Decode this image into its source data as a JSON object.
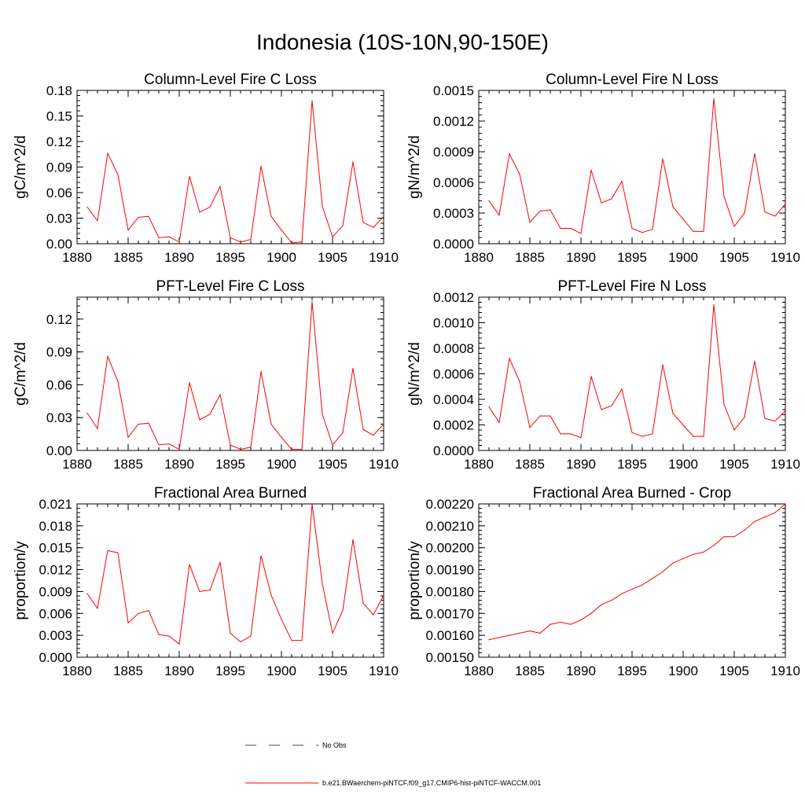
{
  "title": "Indonesia (10S-10N,90-150E)",
  "legend": [
    {
      "label": "No Obs",
      "color": "#3b3bb3",
      "style": "dashed"
    },
    {
      "label": "b.e21.BWaerchem-piNTCF.f09_g17.CMIP6-hist-piNTCF-WACCM.001",
      "color": "#ff0000",
      "style": "solid"
    }
  ],
  "chart_data": [
    {
      "type": "line",
      "title": "Column-Level Fire C Loss",
      "ylabel": "gC/m^2/d",
      "xlim": [
        1880,
        1910
      ],
      "ylim": [
        0,
        0.18
      ],
      "xticks": [
        "1880",
        "1885",
        "1890",
        "1895",
        "1900",
        "1905",
        "1910"
      ],
      "yticks": [
        "0.00",
        "0.03",
        "0.06",
        "0.09",
        "0.12",
        "0.15",
        "0.18"
      ],
      "x": [
        1881,
        1882,
        1883,
        1884,
        1885,
        1886,
        1887,
        1888,
        1889,
        1890,
        1891,
        1892,
        1893,
        1894,
        1895,
        1896,
        1897,
        1898,
        1899,
        1900,
        1901,
        1902,
        1903,
        1904,
        1905,
        1906,
        1907,
        1908,
        1909,
        1910
      ],
      "series": [
        {
          "color": "#ff0000",
          "values": [
            0.043,
            0.027,
            0.106,
            0.081,
            0.016,
            0.031,
            0.032,
            0.007,
            0.008,
            0.002,
            0.079,
            0.037,
            0.043,
            0.067,
            0.007,
            0.002,
            0.005,
            0.091,
            0.032,
            0.016,
            0.001,
            0.002,
            0.168,
            0.044,
            0.008,
            0.021,
            0.096,
            0.025,
            0.019,
            0.032
          ]
        }
      ]
    },
    {
      "type": "line",
      "title": "Column-Level Fire N Loss",
      "ylabel": "gN/m^2/d",
      "xlim": [
        1880,
        1910
      ],
      "ylim": [
        0,
        0.0015
      ],
      "xticks": [
        "1880",
        "1885",
        "1890",
        "1895",
        "1900",
        "1905",
        "1910"
      ],
      "yticks": [
        "0.0000",
        "0.0003",
        "0.0006",
        "0.0009",
        "0.0012",
        "0.0015"
      ],
      "x": [
        1881,
        1882,
        1883,
        1884,
        1885,
        1886,
        1887,
        1888,
        1889,
        1890,
        1891,
        1892,
        1893,
        1894,
        1895,
        1896,
        1897,
        1898,
        1899,
        1900,
        1901,
        1902,
        1903,
        1904,
        1905,
        1906,
        1907,
        1908,
        1909,
        1910
      ],
      "series": [
        {
          "color": "#ff0000",
          "values": [
            0.00042,
            0.00028,
            0.00088,
            0.00068,
            0.00021,
            0.00032,
            0.00033,
            0.00015,
            0.00015,
            0.0001,
            0.00072,
            0.0004,
            0.00044,
            0.00061,
            0.00015,
            0.00011,
            0.00014,
            0.00083,
            0.00036,
            0.00024,
            0.00012,
            0.00012,
            0.00142,
            0.00046,
            0.00017,
            0.0003,
            0.00088,
            0.00031,
            0.00027,
            0.00039
          ]
        }
      ]
    },
    {
      "type": "line",
      "title": "PFT-Level Fire C Loss",
      "ylabel": "gC/m^2/d",
      "xlim": [
        1880,
        1910
      ],
      "ylim": [
        0,
        0.14
      ],
      "xticks": [
        "1880",
        "1885",
        "1890",
        "1895",
        "1900",
        "1905",
        "1910"
      ],
      "yticks": [
        "0.00",
        "0.03",
        "0.06",
        "0.09",
        "0.12"
      ],
      "ytick_values": [
        0,
        0.03,
        0.06,
        0.09,
        0.12
      ],
      "x": [
        1881,
        1882,
        1883,
        1884,
        1885,
        1886,
        1887,
        1888,
        1889,
        1890,
        1891,
        1892,
        1893,
        1894,
        1895,
        1896,
        1897,
        1898,
        1899,
        1900,
        1901,
        1902,
        1903,
        1904,
        1905,
        1906,
        1907,
        1908,
        1909,
        1910
      ],
      "series": [
        {
          "color": "#ff0000",
          "values": [
            0.034,
            0.02,
            0.086,
            0.063,
            0.012,
            0.024,
            0.025,
            0.005,
            0.006,
            0.001,
            0.062,
            0.028,
            0.033,
            0.051,
            0.005,
            0.001,
            0.003,
            0.072,
            0.024,
            0.012,
            0.001,
            0.001,
            0.136,
            0.033,
            0.005,
            0.016,
            0.075,
            0.019,
            0.014,
            0.024
          ]
        }
      ]
    },
    {
      "type": "line",
      "title": "PFT-Level Fire N Loss",
      "ylabel": "gN/m^2/d",
      "xlim": [
        1880,
        1910
      ],
      "ylim": [
        0,
        0.0012
      ],
      "xticks": [
        "1880",
        "1885",
        "1890",
        "1895",
        "1900",
        "1905",
        "1910"
      ],
      "yticks": [
        "0.0000",
        "0.0002",
        "0.0004",
        "0.0006",
        "0.0008",
        "0.0010",
        "0.0012"
      ],
      "x": [
        1881,
        1882,
        1883,
        1884,
        1885,
        1886,
        1887,
        1888,
        1889,
        1890,
        1891,
        1892,
        1893,
        1894,
        1895,
        1896,
        1897,
        1898,
        1899,
        1900,
        1901,
        1902,
        1903,
        1904,
        1905,
        1906,
        1907,
        1908,
        1909,
        1910
      ],
      "series": [
        {
          "color": "#ff0000",
          "values": [
            0.00034,
            0.00022,
            0.00072,
            0.00054,
            0.00018,
            0.00027,
            0.00027,
            0.00013,
            0.00013,
            0.0001,
            0.00058,
            0.00032,
            0.00035,
            0.00048,
            0.00014,
            0.00011,
            0.00013,
            0.00067,
            0.00029,
            0.0002,
            0.00011,
            0.00011,
            0.00114,
            0.00036,
            0.00016,
            0.00026,
            0.0007,
            0.00025,
            0.00023,
            0.00031
          ]
        }
      ]
    },
    {
      "type": "line",
      "title": "Fractional Area Burned",
      "ylabel": "proportion/y",
      "xlim": [
        1880,
        1910
      ],
      "ylim": [
        0,
        0.021
      ],
      "xticks": [
        "1880",
        "1885",
        "1890",
        "1895",
        "1900",
        "1905",
        "1910"
      ],
      "yticks": [
        "0.000",
        "0.003",
        "0.006",
        "0.009",
        "0.012",
        "0.015",
        "0.018",
        "0.021"
      ],
      "x": [
        1881,
        1882,
        1883,
        1884,
        1885,
        1886,
        1887,
        1888,
        1889,
        1890,
        1891,
        1892,
        1893,
        1894,
        1895,
        1896,
        1897,
        1898,
        1899,
        1900,
        1901,
        1902,
        1903,
        1904,
        1905,
        1906,
        1907,
        1908,
        1909,
        1910
      ],
      "series": [
        {
          "color": "#ff0000",
          "values": [
            0.0087,
            0.0067,
            0.0146,
            0.0143,
            0.0047,
            0.006,
            0.0064,
            0.0031,
            0.0029,
            0.0018,
            0.0127,
            0.009,
            0.0092,
            0.013,
            0.0033,
            0.0021,
            0.0029,
            0.0139,
            0.0085,
            0.0052,
            0.0023,
            0.0023,
            0.021,
            0.0101,
            0.0033,
            0.0064,
            0.0161,
            0.0074,
            0.0058,
            0.0085
          ]
        }
      ]
    },
    {
      "type": "line",
      "title": "Fractional Area Burned - Crop",
      "ylabel": "proportion/y",
      "xlim": [
        1880,
        1910
      ],
      "ylim": [
        0.0015,
        0.0022
      ],
      "xticks": [
        "1880",
        "1885",
        "1890",
        "1895",
        "1900",
        "1905",
        "1910"
      ],
      "yticks": [
        "0.00150",
        "0.00160",
        "0.00170",
        "0.00180",
        "0.00190",
        "0.00200",
        "0.00210",
        "0.00220"
      ],
      "x": [
        1881,
        1882,
        1883,
        1884,
        1885,
        1886,
        1887,
        1888,
        1889,
        1890,
        1891,
        1892,
        1893,
        1894,
        1895,
        1896,
        1897,
        1898,
        1899,
        1900,
        1901,
        1902,
        1903,
        1904,
        1905,
        1906,
        1907,
        1908,
        1909,
        1910
      ],
      "series": [
        {
          "color": "#ff0000",
          "values": [
            0.00158,
            0.00159,
            0.0016,
            0.00161,
            0.00162,
            0.00161,
            0.00165,
            0.00166,
            0.00165,
            0.00167,
            0.0017,
            0.00174,
            0.00176,
            0.00179,
            0.00181,
            0.00183,
            0.00186,
            0.00189,
            0.00193,
            0.00195,
            0.00197,
            0.00198,
            0.00201,
            0.00205,
            0.00205,
            0.00208,
            0.00212,
            0.00214,
            0.00216,
            0.0022
          ]
        }
      ]
    }
  ]
}
